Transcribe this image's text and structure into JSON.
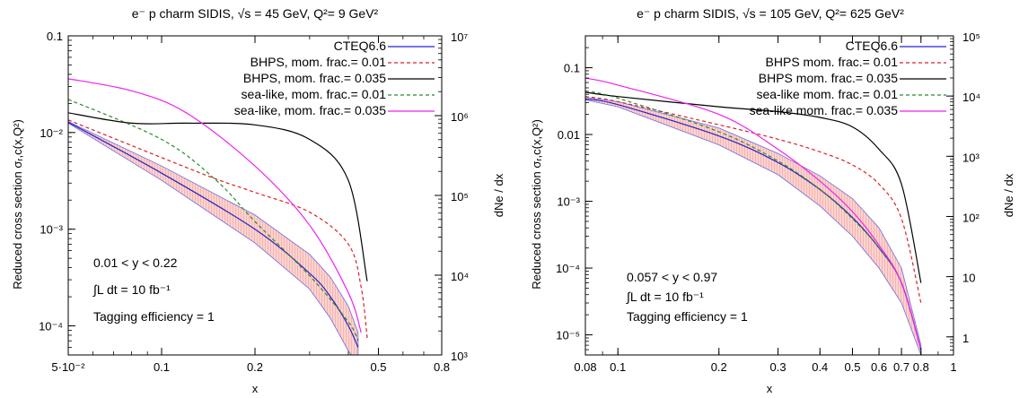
{
  "chart_data": [
    {
      "type": "line",
      "title": "e⁻ p charm SIDIS,  √s = 45 GeV, Q²= 9 GeV²",
      "xlabel": "x",
      "ylabel": "Reduced cross section  σᵣ,c(x,Q²)",
      "y2label": "dNe / dx",
      "x_scale": "log",
      "y_scale": "log",
      "xlim": [
        0.05,
        0.8
      ],
      "ylim": [
        5e-05,
        0.1
      ],
      "y2lim": [
        1000,
        10000000
      ],
      "x_ticks": [
        {
          "v": 0.05,
          "label": "5·10⁻²"
        },
        {
          "v": 0.1,
          "label": "0.1"
        },
        {
          "v": 0.2,
          "label": "0.2"
        },
        {
          "v": 0.5,
          "label": "0.5"
        },
        {
          "v": 0.8,
          "label": "0.8"
        }
      ],
      "y_ticks": [
        {
          "v": 0.1,
          "label": "0.1"
        },
        {
          "v": 0.01,
          "label": "10⁻²"
        },
        {
          "v": 0.001,
          "label": "10⁻³"
        },
        {
          "v": 0.0001,
          "label": "10⁻⁴"
        }
      ],
      "y2_ticks": [
        {
          "v": 10000000,
          "label": "10⁷"
        },
        {
          "v": 1000000,
          "label": "10⁶"
        },
        {
          "v": 100000,
          "label": "10⁵"
        },
        {
          "v": 10000,
          "label": "10⁴"
        },
        {
          "v": 1000,
          "label": "10³"
        }
      ],
      "band": {
        "x": [
          0.05,
          0.1,
          0.2,
          0.3,
          0.35,
          0.4,
          0.43
        ],
        "lower": [
          0.0125,
          0.0032,
          0.00072,
          0.00024,
          0.00012,
          5.5e-05,
          4e-05
        ],
        "upper": [
          0.013,
          0.0045,
          0.0014,
          0.00055,
          0.00032,
          0.00016,
          8.5e-05
        ]
      },
      "series": [
        {
          "name": "CTEQ6.6",
          "color": "#2222cc",
          "dash": "",
          "x": [
            0.05,
            0.1,
            0.2,
            0.3,
            0.35,
            0.4,
            0.43
          ],
          "y": [
            0.0128,
            0.0038,
            0.001,
            0.00035,
            0.0002,
            0.0001,
            6e-05
          ]
        },
        {
          "name": "BHPS, mom. frac.= 0.01",
          "color": "#dd2222",
          "dash": "4,3",
          "x": [
            0.05,
            0.1,
            0.15,
            0.2,
            0.3,
            0.4,
            0.44,
            0.46
          ],
          "y": [
            0.0135,
            0.0055,
            0.0033,
            0.0024,
            0.0015,
            0.0007,
            0.00025,
            7.5e-05
          ]
        },
        {
          "name": "BHPS, mom. frac.= 0.035",
          "color": "#000000",
          "dash": "",
          "x": [
            0.05,
            0.08,
            0.12,
            0.2,
            0.3,
            0.4,
            0.46
          ],
          "y": [
            0.016,
            0.0125,
            0.0125,
            0.012,
            0.0085,
            0.0032,
            0.00029
          ]
        },
        {
          "name": "sea-like, mom. frac.= 0.01",
          "color": "#2a8a2a",
          "dash": "4,3",
          "x": [
            0.05,
            0.1,
            0.15,
            0.2,
            0.3,
            0.4,
            0.43
          ],
          "y": [
            0.022,
            0.0085,
            0.0032,
            0.0012,
            0.00033,
            0.00011,
            7e-05
          ]
        },
        {
          "name": "sea-like, mom. frac.= 0.035",
          "color": "#ee22ee",
          "dash": "",
          "x": [
            0.05,
            0.08,
            0.12,
            0.2,
            0.3,
            0.4,
            0.44
          ],
          "y": [
            0.036,
            0.027,
            0.016,
            0.0045,
            0.0011,
            0.00022,
            8.5e-05
          ]
        }
      ],
      "annotations": [
        "0.01 < y < 0.22",
        "∫L dt = 10 fb⁻¹",
        "Tagging efficiency = 1"
      ]
    },
    {
      "type": "line",
      "title": "e⁻ p charm SIDIS,  √s = 105 GeV, Q²= 625 GeV²",
      "xlabel": "x",
      "ylabel": "Reduced cross section  σᵣ,c(x,Q²)",
      "y2label": "dNe / dx",
      "x_scale": "log",
      "y_scale": "log",
      "xlim": [
        0.08,
        1
      ],
      "ylim": [
        5e-06,
        0.3
      ],
      "y2lim": [
        0.5,
        100000
      ],
      "x_ticks": [
        {
          "v": 0.08,
          "label": "0.08"
        },
        {
          "v": 0.1,
          "label": "0.1"
        },
        {
          "v": 0.2,
          "label": "0.2"
        },
        {
          "v": 0.3,
          "label": "0.3"
        },
        {
          "v": 0.4,
          "label": "0.4"
        },
        {
          "v": 0.5,
          "label": "0.5"
        },
        {
          "v": 0.6,
          "label": "0.6"
        },
        {
          "v": 0.7,
          "label": "0.7"
        },
        {
          "v": 0.8,
          "label": "0.8"
        },
        {
          "v": 1,
          "label": "1"
        }
      ],
      "y_ticks": [
        {
          "v": 0.1,
          "label": "0.1"
        },
        {
          "v": 0.01,
          "label": "0.01"
        },
        {
          "v": 0.001,
          "label": "10⁻³"
        },
        {
          "v": 0.0001,
          "label": "10⁻⁴"
        },
        {
          "v": 1e-05,
          "label": "10⁻⁵"
        }
      ],
      "y2_ticks": [
        {
          "v": 100000,
          "label": "10⁵"
        },
        {
          "v": 10000,
          "label": "10⁴"
        },
        {
          "v": 1000,
          "label": "10³"
        },
        {
          "v": 100,
          "label": "10²"
        },
        {
          "v": 10,
          "label": "10"
        },
        {
          "v": 1,
          "label": "1"
        }
      ],
      "band": {
        "x": [
          0.08,
          0.1,
          0.2,
          0.3,
          0.4,
          0.5,
          0.6,
          0.7,
          0.8
        ],
        "lower": [
          0.033,
          0.026,
          0.007,
          0.0025,
          0.00085,
          0.0003,
          0.0001,
          3e-05,
          5e-06
        ],
        "upper": [
          0.036,
          0.031,
          0.0125,
          0.0052,
          0.0024,
          0.0011,
          0.0004,
          0.0001,
          7e-06
        ]
      },
      "series": [
        {
          "name": "CTEQ6.6",
          "color": "#2222cc",
          "dash": "",
          "x": [
            0.08,
            0.1,
            0.2,
            0.3,
            0.4,
            0.5,
            0.6,
            0.7,
            0.8
          ],
          "y": [
            0.034,
            0.028,
            0.0095,
            0.0038,
            0.0015,
            0.00057,
            0.0002,
            6e-05,
            6e-06
          ]
        },
        {
          "name": "BHPS mom. frac.= 0.01",
          "color": "#dd2222",
          "dash": "4,3",
          "x": [
            0.08,
            0.1,
            0.2,
            0.3,
            0.4,
            0.5,
            0.6,
            0.7,
            0.8
          ],
          "y": [
            0.037,
            0.031,
            0.014,
            0.0085,
            0.0055,
            0.0035,
            0.0018,
            0.00055,
            3e-05
          ]
        },
        {
          "name": "BHPS mom. frac.= 0.035",
          "color": "#000000",
          "dash": "",
          "x": [
            0.08,
            0.1,
            0.2,
            0.3,
            0.4,
            0.5,
            0.6,
            0.7,
            0.8
          ],
          "y": [
            0.043,
            0.037,
            0.026,
            0.022,
            0.018,
            0.013,
            0.006,
            0.0018,
            6e-05
          ]
        },
        {
          "name": "sea-like mom. frac.= 0.01",
          "color": "#2a8a2a",
          "dash": "4,3",
          "x": [
            0.08,
            0.1,
            0.2,
            0.3,
            0.4,
            0.5,
            0.6,
            0.7,
            0.8
          ],
          "y": [
            0.045,
            0.035,
            0.011,
            0.004,
            0.0015,
            0.00055,
            0.0002,
            6e-05,
            6e-06
          ]
        },
        {
          "name": "sea-like mom. frac.= 0.035",
          "color": "#ee22ee",
          "dash": "",
          "x": [
            0.08,
            0.1,
            0.2,
            0.3,
            0.4,
            0.5,
            0.6,
            0.7,
            0.8
          ],
          "y": [
            0.07,
            0.055,
            0.02,
            0.006,
            0.002,
            0.0007,
            0.00022,
            6e-05,
            6e-06
          ]
        }
      ],
      "annotations": [
        "0.057 < y < 0.97",
        "∫L dt = 10 fb⁻¹",
        "Tagging efficiency = 1"
      ]
    }
  ]
}
